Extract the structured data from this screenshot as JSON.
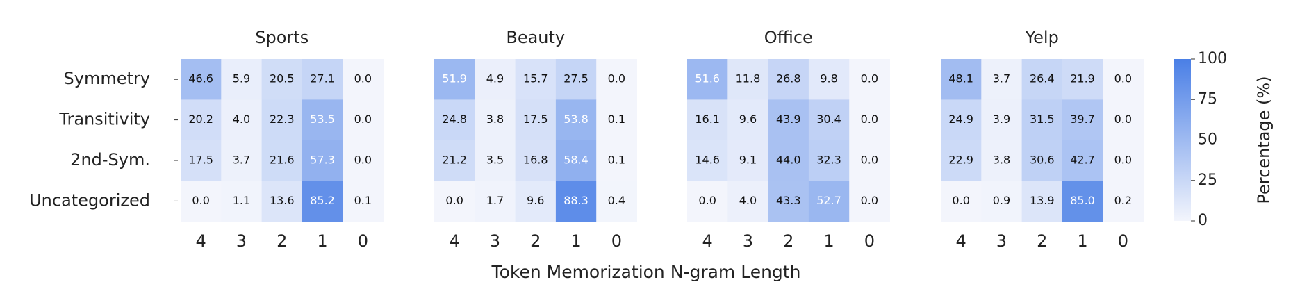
{
  "chart_data": [
    {
      "type": "heatmap",
      "title": "Sports",
      "rows": [
        "Symmetry",
        "Transitivity",
        "2nd-Sym.",
        "Uncategorized"
      ],
      "categories": [
        "4",
        "3",
        "2",
        "1",
        "0"
      ],
      "values": [
        [
          46.6,
          5.9,
          20.5,
          27.1,
          0.0
        ],
        [
          20.2,
          4.0,
          22.3,
          53.5,
          0.0
        ],
        [
          17.5,
          3.7,
          21.6,
          57.3,
          0.0
        ],
        [
          0.0,
          1.1,
          13.6,
          85.2,
          0.1
        ]
      ],
      "value_labels": [
        [
          "46.6",
          "5.9",
          "20.5",
          "27.1",
          "0.0"
        ],
        [
          "20.2",
          "4.0",
          "22.3",
          "53.5",
          "0.0"
        ],
        [
          "17.5",
          "3.7",
          "21.6",
          "57.3",
          "0.0"
        ],
        [
          "0.0",
          "1.1",
          "13.6",
          "85.2",
          "0.1"
        ]
      ]
    },
    {
      "type": "heatmap",
      "title": "Beauty",
      "categories": [
        "4",
        "3",
        "2",
        "1",
        "0"
      ],
      "values": [
        [
          51.9,
          4.9,
          15.7,
          27.5,
          0.0
        ],
        [
          24.8,
          3.8,
          17.5,
          53.8,
          0.1
        ],
        [
          21.2,
          3.5,
          16.8,
          58.4,
          0.1
        ],
        [
          0.0,
          1.7,
          9.6,
          88.3,
          0.4
        ]
      ],
      "value_labels": [
        [
          "51.9",
          "4.9",
          "15.7",
          "27.5",
          "0.0"
        ],
        [
          "24.8",
          "3.8",
          "17.5",
          "53.8",
          "0.1"
        ],
        [
          "21.2",
          "3.5",
          "16.8",
          "58.4",
          "0.1"
        ],
        [
          "0.0",
          "1.7",
          "9.6",
          "88.3",
          "0.4"
        ]
      ]
    },
    {
      "type": "heatmap",
      "title": "Office",
      "categories": [
        "4",
        "3",
        "2",
        "1",
        "0"
      ],
      "values": [
        [
          51.6,
          11.8,
          26.8,
          9.8,
          0.0
        ],
        [
          16.1,
          9.6,
          43.9,
          30.4,
          0.0
        ],
        [
          14.6,
          9.1,
          44.0,
          32.3,
          0.0
        ],
        [
          0.0,
          4.0,
          43.3,
          52.7,
          0.0
        ]
      ],
      "value_labels": [
        [
          "51.6",
          "11.8",
          "26.8",
          "9.8",
          "0.0"
        ],
        [
          "16.1",
          "9.6",
          "43.9",
          "30.4",
          "0.0"
        ],
        [
          "14.6",
          "9.1",
          "44.0",
          "32.3",
          "0.0"
        ],
        [
          "0.0",
          "4.0",
          "43.3",
          "52.7",
          "0.0"
        ]
      ]
    },
    {
      "type": "heatmap",
      "title": "Yelp",
      "categories": [
        "4",
        "3",
        "2",
        "1",
        "0"
      ],
      "values": [
        [
          48.1,
          3.7,
          26.4,
          21.9,
          0.0
        ],
        [
          24.9,
          3.9,
          31.5,
          39.7,
          0.0
        ],
        [
          22.9,
          3.8,
          30.6,
          42.7,
          0.0
        ],
        [
          0.0,
          0.9,
          13.9,
          85.0,
          0.2
        ]
      ],
      "value_labels": [
        [
          "48.1",
          "3.7",
          "26.4",
          "21.9",
          "0.0"
        ],
        [
          "24.9",
          "3.9",
          "31.5",
          "39.7",
          "0.0"
        ],
        [
          "22.9",
          "3.8",
          "30.6",
          "42.7",
          "0.0"
        ],
        [
          "0.0",
          "0.9",
          "13.9",
          "85.0",
          "0.2"
        ]
      ]
    }
  ],
  "xlabel": "Token Memorization N-gram Length",
  "colorbar": {
    "label": "Percentage (%)",
    "lim": [
      0,
      100
    ],
    "ticks": [
      0,
      25,
      50,
      75,
      100
    ],
    "colors": [
      "#f3f5fc",
      "#4a7fe6"
    ]
  }
}
